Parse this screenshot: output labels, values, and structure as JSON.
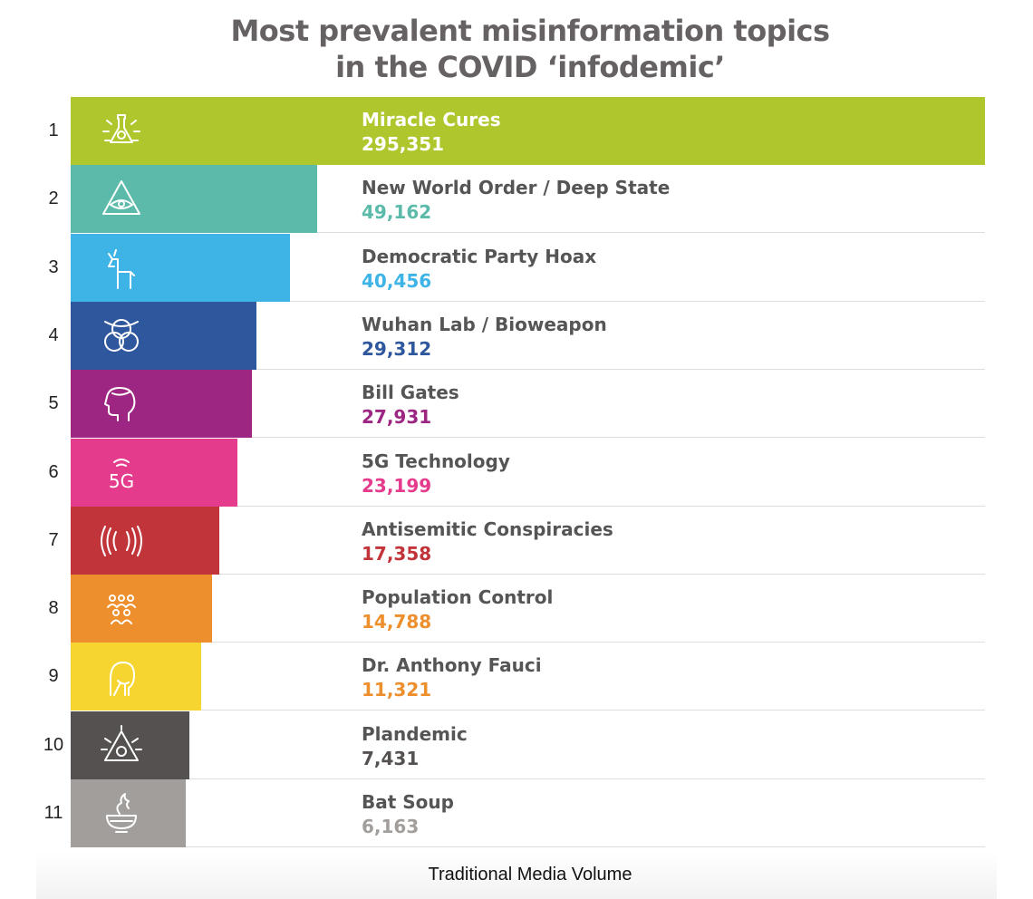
{
  "chart_data": {
    "type": "bar",
    "orientation": "horizontal",
    "title": "Most prevalent misinformation topics\nin the COVID ‘infodemic’",
    "xlabel": "Traditional Media Volume",
    "ylabel": "",
    "grid": false,
    "categories": [
      "Miracle Cures",
      "New World Order / Deep State",
      "Democratic Party Hoax",
      "Wuhan Lab / Bioweapon",
      "Bill Gates",
      "5G Technology",
      "Antisemitic Conspiracies",
      "Population Control",
      "Dr. Anthony Fauci",
      "Plandemic",
      "Bat Soup"
    ],
    "ranks": [
      "1",
      "2",
      "3",
      "4",
      "5",
      "6",
      "7",
      "8",
      "9",
      "10",
      "11"
    ],
    "values": [
      295351,
      49162,
      40456,
      29312,
      27931,
      23199,
      17358,
      14788,
      11321,
      7431,
      6163
    ],
    "value_labels": [
      "295,351",
      "49,162",
      "40,456",
      "29,312",
      "27,931",
      "23,199",
      "17,358",
      "14,788",
      "11,321",
      "7,431",
      "6,163"
    ],
    "bar_colors": [
      "#afc72c",
      "#5bbaa9",
      "#3eb4e6",
      "#2f579e",
      "#9c2682",
      "#e53b8c",
      "#c1343a",
      "#ee8f2d",
      "#f7d531",
      "#555150",
      "#a29e9c"
    ],
    "value_colors": [
      "#ffffff",
      "#5bbaa9",
      "#3eb4e6",
      "#2f579e",
      "#9c2682",
      "#e53b8c",
      "#c1343a",
      "#ee8f2d",
      "#ee8f2d",
      "#555150",
      "#a29e9c"
    ],
    "icons": [
      "flask-sparkle-icon",
      "all-seeing-eye-icon",
      "donkey-icon",
      "biohazard-icon",
      "head-profile-icon",
      "5g-signal-icon",
      "radio-waves-icon",
      "crowd-icon",
      "fauci-face-icon",
      "virus-triangle-icon",
      "bat-soup-bowl-icon"
    ]
  },
  "icon_text": {
    "fiveg": "5G"
  }
}
